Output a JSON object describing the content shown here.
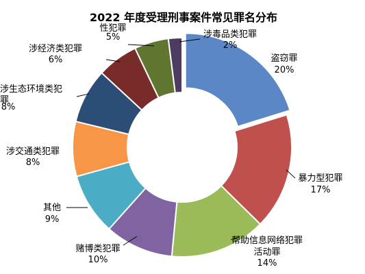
{
  "chart_data": {
    "type": "donut",
    "title": "2022 年度受理刑事案件常见罪名分布",
    "slices": [
      {
        "name": "盗窃罪",
        "value": 20,
        "label": "20%",
        "color": "#5B87C6"
      },
      {
        "name": "暴力型犯罪",
        "value": 17,
        "label": "17%",
        "color": "#C0504D"
      },
      {
        "name": "帮助信息网络犯罪活动罪",
        "value": 14,
        "label": "14%",
        "color": "#9BBB59"
      },
      {
        "name": "赌博类犯罪",
        "value": 10,
        "label": "10%",
        "color": "#8064A2"
      },
      {
        "name": "其他",
        "value": 9,
        "label": "9%",
        "color": "#4BACC6"
      },
      {
        "name": "涉交通类犯罪",
        "value": 8,
        "label": "8%",
        "color": "#F79646"
      },
      {
        "name": "涉生态环境类犯罪",
        "value": 8,
        "label": "8%",
        "color": "#2C4D75"
      },
      {
        "name": "涉经济类犯罪",
        "value": 6,
        "label": "6%",
        "color": "#772C2A"
      },
      {
        "name": "性犯罪",
        "value": 5,
        "label": "5%",
        "color": "#5F7530"
      },
      {
        "name": "涉毒品类犯罪",
        "value": 2,
        "label": "2%",
        "color": "#4D3B62"
      }
    ]
  }
}
